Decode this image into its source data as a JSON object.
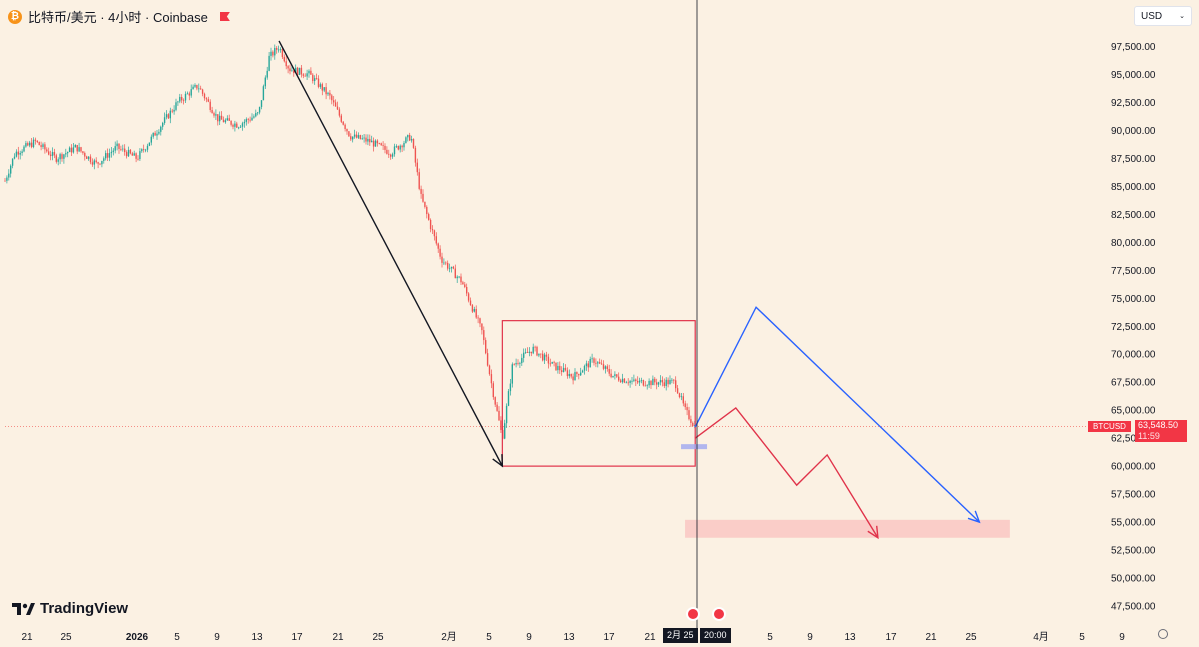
{
  "header": {
    "title": "比特币/美元 · 4小时 · Coinbase",
    "logo_icon": "bitcoin-icon",
    "flag_icon": "flag-icon"
  },
  "currency": {
    "selected": "USD"
  },
  "branding": {
    "name": "TradingView"
  },
  "price_tag": {
    "symbol": "BTCUSD",
    "price": "63,548.50",
    "countdown": "11:59"
  },
  "time_axis": {
    "labels": [
      "21",
      "25",
      "2026",
      "5",
      "9",
      "13",
      "17",
      "21",
      "25",
      "2月",
      "5",
      "9",
      "13",
      "17",
      "21",
      "5",
      "9",
      "13",
      "17",
      "21",
      "25",
      "4月",
      "5",
      "9"
    ],
    "crosshair_date": "2月 25",
    "crosshair_time": "20:00"
  },
  "colors": {
    "up": "#26a69a",
    "down": "#ef5350",
    "blue": "#2962ff",
    "red_line": "#e0334a",
    "zone": "#f9c9c4"
  },
  "chart_data": {
    "type": "line",
    "symbol": "BTCUSD",
    "interval": "4小时",
    "exchange": "Coinbase",
    "ylim": [
      46500,
      99500
    ],
    "y_ticks": [
      47500,
      50000,
      52500,
      55000,
      57500,
      60000,
      62500,
      65000,
      67500,
      70000,
      72500,
      75000,
      77500,
      80000,
      82500,
      85000,
      87500,
      90000,
      92500,
      95000,
      97500
    ],
    "y_tick_labels": [
      "47,500.00",
      "50,000.00",
      "52,500.00",
      "55,000.00",
      "57,500.00",
      "60,000.00",
      "62,500.00",
      "65,000.00",
      "67,500.00",
      "70,000.00",
      "72,500.00",
      "75,000.00",
      "77,500.00",
      "80,000.00",
      "82,500.00",
      "85,000.00",
      "87,500.00",
      "90,000.00",
      "92,500.00",
      "95,000.00",
      "97,500.00"
    ],
    "price_path": [
      [
        "2025-12-19",
        85500
      ],
      [
        "2025-12-20",
        88000
      ],
      [
        "2025-12-22",
        89000
      ],
      [
        "2025-12-24",
        87500
      ],
      [
        "2025-12-26",
        88500
      ],
      [
        "2025-12-28",
        87000
      ],
      [
        "2025-12-30",
        88500
      ],
      [
        "2026-01-01",
        87500
      ],
      [
        "2026-01-03",
        90000
      ],
      [
        "2026-01-05",
        92500
      ],
      [
        "2026-01-07",
        94000
      ],
      [
        "2026-01-09",
        91000
      ],
      [
        "2026-01-11",
        90500
      ],
      [
        "2026-01-13",
        91500
      ],
      [
        "2026-01-14",
        96500
      ],
      [
        "2026-01-15",
        97500
      ],
      [
        "2026-01-16",
        95500
      ],
      [
        "2026-01-18",
        95000
      ],
      [
        "2026-01-20",
        93000
      ],
      [
        "2026-01-22",
        89500
      ],
      [
        "2026-01-24",
        89000
      ],
      [
        "2026-01-26",
        88000
      ],
      [
        "2026-01-28",
        89500
      ],
      [
        "2026-01-29",
        84000
      ],
      [
        "2026-01-31",
        78500
      ],
      [
        "2026-02-02",
        76500
      ],
      [
        "2026-02-04",
        72000
      ],
      [
        "2026-02-05",
        67000
      ],
      [
        "2026-02-06",
        62500
      ],
      [
        "2026-02-07",
        69000
      ],
      [
        "2026-02-09",
        70500
      ],
      [
        "2026-02-11",
        69000
      ],
      [
        "2026-02-13",
        68000
      ],
      [
        "2026-02-15",
        69500
      ],
      [
        "2026-02-17",
        68000
      ],
      [
        "2026-02-19",
        67500
      ],
      [
        "2026-02-21",
        67500
      ],
      [
        "2026-02-23",
        67500
      ],
      [
        "2026-02-24",
        65000
      ],
      [
        "2026-02-25",
        63500
      ]
    ],
    "last_price": 63548.5,
    "drawings": {
      "black_arrow": [
        [
          "2026-01-15",
          98000
        ],
        [
          "2026-02-06",
          60000
        ]
      ],
      "range_box": {
        "x": [
          "2026-02-06",
          "2026-02-25"
        ],
        "y": [
          60000,
          73000
        ]
      },
      "blue_arrow": [
        [
          "2026-02-25",
          63500
        ],
        [
          "2026-03-03",
          74200
        ],
        [
          "2026-03-25",
          55000
        ]
      ],
      "red_arrow": [
        [
          "2026-02-25",
          62500
        ],
        [
          "2026-03-01",
          65200
        ],
        [
          "2026-03-07",
          58300
        ],
        [
          "2026-03-10",
          61000
        ],
        [
          "2026-03-15",
          53600
        ]
      ],
      "target_zone": {
        "x": [
          "2026-02-24",
          "2026-03-28"
        ],
        "y": [
          53600,
          55200
        ]
      }
    }
  }
}
